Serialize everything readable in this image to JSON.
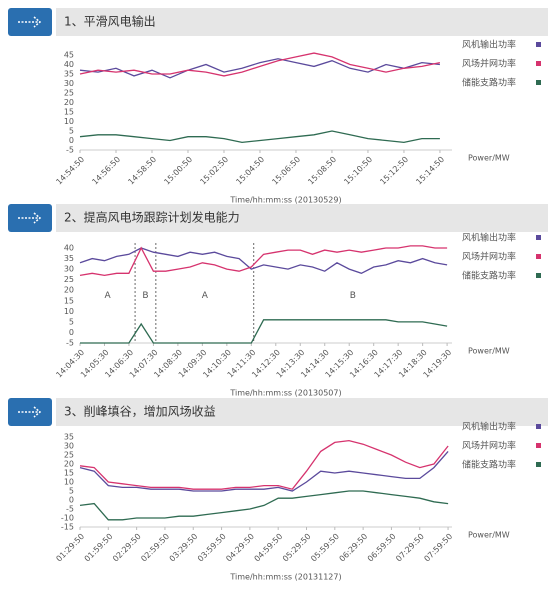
{
  "chart_data": [
    {
      "type": "line",
      "title": "1、平滑风电输出",
      "x_label": "Time/hh:mm:ss (20130529)",
      "y_label": "Power/MW",
      "x": [
        894.83,
        895.83,
        896.83,
        897.83,
        898.83,
        899.83,
        900.83,
        901.83,
        902.83,
        903.83,
        904.83,
        905.83,
        906.83,
        907.83,
        908.83,
        909.83,
        910.83,
        911.83,
        912.83,
        913.83,
        914.83
      ],
      "xlim": [
        894.83,
        915.5
      ],
      "xticks": [
        {
          "value": 894.83,
          "label": "14:54:50"
        },
        {
          "value": 896.83,
          "label": "14:56:50"
        },
        {
          "value": 898.83,
          "label": "14:58:50"
        },
        {
          "value": 900.83,
          "label": "15:00:50"
        },
        {
          "value": 902.83,
          "label": "15:02:50"
        },
        {
          "value": 904.83,
          "label": "15:04:50"
        },
        {
          "value": 906.83,
          "label": "15:06:50"
        },
        {
          "value": 908.83,
          "label": "15:08:50"
        },
        {
          "value": 910.83,
          "label": "15:10:50"
        },
        {
          "value": 912.83,
          "label": "15:12:50"
        },
        {
          "value": 914.83,
          "label": "15:14:50"
        }
      ],
      "ylim": [
        -5,
        45
      ],
      "yticks": [
        45,
        40,
        35,
        30,
        25,
        20,
        15,
        10,
        5,
        0,
        -5
      ],
      "series": [
        {
          "name": "风机输出功率",
          "color": "#5b4a9c",
          "values": [
            37,
            36,
            38,
            34,
            37,
            33,
            37,
            40,
            36,
            38,
            41,
            43,
            41,
            39,
            42,
            38,
            36,
            40,
            38,
            41,
            40
          ]
        },
        {
          "name": "风场并网功率",
          "color": "#d6336e",
          "values": [
            35,
            37,
            36,
            37,
            35,
            35,
            37,
            36,
            34,
            36,
            39,
            42,
            44,
            46,
            44,
            40,
            38,
            36,
            38,
            39,
            41
          ]
        },
        {
          "name": "储能支路功率",
          "color": "#2f6b52",
          "values": [
            2,
            3,
            3,
            2,
            1,
            0,
            2,
            2,
            1,
            -1,
            0,
            1,
            2,
            3,
            5,
            3,
            1,
            0,
            -1,
            1,
            1
          ]
        }
      ]
    },
    {
      "type": "line",
      "title": "2、提高风电场跟踪计划发电能力",
      "x_label": "Time/hh:mm:ss (20130507)",
      "y_label": "Power/MW",
      "x": [
        844.5,
        845,
        845.5,
        846,
        846.5,
        847,
        847.5,
        848,
        848.5,
        849,
        849.5,
        850,
        850.5,
        851,
        851.5,
        852,
        852.5,
        853,
        853.5,
        854,
        854.5,
        855,
        855.5,
        856,
        856.5,
        857,
        857.5,
        858,
        858.5,
        859,
        859.5
      ],
      "xlim": [
        844.5,
        859.7
      ],
      "xticks": [
        {
          "value": 844.5,
          "label": "14:04:30"
        },
        {
          "value": 845.5,
          "label": "14:05:30"
        },
        {
          "value": 846.5,
          "label": "14:06:30"
        },
        {
          "value": 847.5,
          "label": "14:07:30"
        },
        {
          "value": 848.5,
          "label": "14:08:30"
        },
        {
          "value": 849.5,
          "label": "14:09:30"
        },
        {
          "value": 850.5,
          "label": "14:10:30"
        },
        {
          "value": 851.5,
          "label": "14:11:30"
        },
        {
          "value": 852.5,
          "label": "14:12:30"
        },
        {
          "value": 853.5,
          "label": "14:13:30"
        },
        {
          "value": 854.5,
          "label": "14:14:30"
        },
        {
          "value": 855.5,
          "label": "14:15:30"
        },
        {
          "value": 856.5,
          "label": "14:16:30"
        },
        {
          "value": 857.5,
          "label": "14:17:30"
        },
        {
          "value": 858.5,
          "label": "14:18:30"
        },
        {
          "value": 859.5,
          "label": "14:19:30"
        }
      ],
      "ylim": [
        -5,
        40
      ],
      "yticks": [
        40,
        35,
        30,
        25,
        20,
        15,
        10,
        5,
        0,
        -5
      ],
      "dividers": [
        846.75,
        847.6,
        851.6
      ],
      "annotations": [
        "A",
        "B",
        "A",
        "B"
      ],
      "series": [
        {
          "name": "风机输出功率",
          "color": "#5b4a9c",
          "values": [
            33,
            35,
            34,
            36,
            37,
            40,
            38,
            37,
            36,
            38,
            37,
            38,
            36,
            35,
            30,
            32,
            31,
            30,
            32,
            31,
            29,
            33,
            30,
            28,
            31,
            32,
            34,
            33,
            35,
            33,
            32
          ]
        },
        {
          "name": "风场并网功率",
          "color": "#d6336e",
          "values": [
            27,
            28,
            27,
            28,
            28,
            40,
            29,
            29,
            30,
            31,
            33,
            32,
            30,
            29,
            31,
            37,
            38,
            39,
            39,
            37,
            39,
            38,
            39,
            38,
            39,
            40,
            40,
            41,
            41,
            40,
            40
          ]
        },
        {
          "name": "储能支路功率",
          "color": "#2f6b52",
          "values": [
            -5,
            -5,
            -5,
            -5,
            -5,
            4,
            -5,
            -5,
            -5,
            -5,
            -5,
            -5,
            -5,
            -5,
            -5,
            6,
            6,
            6,
            6,
            6,
            6,
            6,
            6,
            6,
            6,
            6,
            5,
            5,
            5,
            4,
            3
          ]
        }
      ]
    },
    {
      "type": "line",
      "title": "3、削峰填谷，增加风场收益",
      "x_label": "Time/hh:mm:ss (20131127)",
      "y_label": "Power/MW",
      "x": [
        89.83,
        104.83,
        119.83,
        134.83,
        149.83,
        164.83,
        179.83,
        194.83,
        209.83,
        224.83,
        239.83,
        254.83,
        269.83,
        284.83,
        299.83,
        314.83,
        329.83,
        344.83,
        359.83,
        374.83,
        389.83,
        404.83,
        419.83,
        434.83,
        449.83,
        464.83,
        479.83
      ],
      "xlim": [
        89.83,
        484
      ],
      "xticks": [
        {
          "value": 89.83,
          "label": "01:29:50"
        },
        {
          "value": 119.83,
          "label": "01:59:50"
        },
        {
          "value": 149.83,
          "label": "02:29:50"
        },
        {
          "value": 179.83,
          "label": "02:59:50"
        },
        {
          "value": 209.83,
          "label": "03:29:50"
        },
        {
          "value": 239.83,
          "label": "03:59:50"
        },
        {
          "value": 269.83,
          "label": "04:29:50"
        },
        {
          "value": 299.83,
          "label": "04:59:50"
        },
        {
          "value": 329.83,
          "label": "05:29:50"
        },
        {
          "value": 359.83,
          "label": "05:59:50"
        },
        {
          "value": 389.83,
          "label": "06:29:50"
        },
        {
          "value": 419.83,
          "label": "06:59:50"
        },
        {
          "value": 449.83,
          "label": "07:29:50"
        },
        {
          "value": 479.83,
          "label": "07:59:50"
        }
      ],
      "ylim": [
        -15,
        35
      ],
      "yticks": [
        35,
        30,
        25,
        20,
        15,
        10,
        5,
        0,
        -5,
        -10,
        -15
      ],
      "series": [
        {
          "name": "风机输出功率",
          "color": "#5b4a9c",
          "values": [
            18,
            16,
            8,
            7,
            7,
            6,
            6,
            6,
            5,
            5,
            5,
            6,
            6,
            6,
            7,
            5,
            10,
            16,
            15,
            16,
            15,
            14,
            13,
            12,
            12,
            18,
            27
          ]
        },
        {
          "name": "风场并网功率",
          "color": "#d6336e",
          "values": [
            19,
            18,
            10,
            9,
            8,
            7,
            7,
            7,
            6,
            6,
            6,
            7,
            7,
            8,
            8,
            6,
            16,
            27,
            32,
            33,
            31,
            28,
            25,
            21,
            18,
            20,
            30
          ]
        },
        {
          "name": "储能支路功率",
          "color": "#2f6b52",
          "values": [
            -3,
            -2,
            -11,
            -11,
            -10,
            -10,
            -10,
            -9,
            -9,
            -8,
            -7,
            -6,
            -5,
            -3,
            1,
            1,
            2,
            3,
            4,
            5,
            5,
            4,
            3,
            2,
            1,
            -1,
            -2
          ]
        }
      ]
    }
  ]
}
